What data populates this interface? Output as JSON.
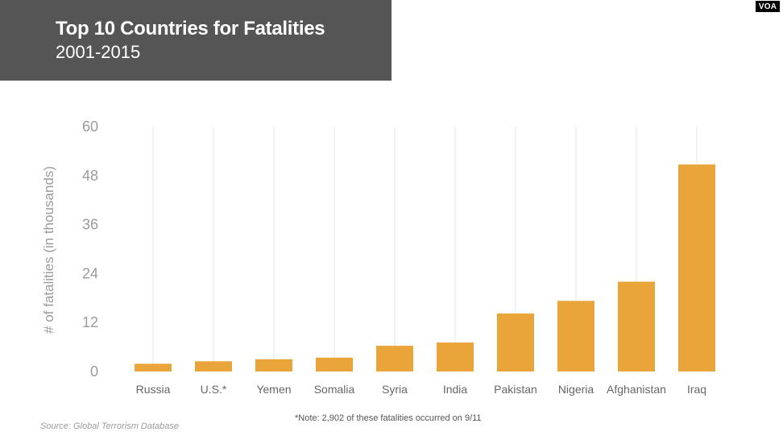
{
  "header": {
    "title": "Top 10 Countries for Fatalities",
    "subtitle": "2001-2015"
  },
  "logo": {
    "text": "VOA"
  },
  "chart_data": {
    "type": "bar",
    "title": "Top 10 Countries for Fatalities",
    "subtitle": "2001-2015",
    "categories": [
      "Russia",
      "U.S.*",
      "Yemen",
      "Somalia",
      "Syria",
      "India",
      "Pakistan",
      "Nigeria",
      "Afghanistan",
      "Iraq"
    ],
    "values": [
      1.9,
      2.5,
      3.0,
      3.4,
      6.3,
      7.1,
      14.2,
      17.3,
      22.0,
      50.7
    ],
    "xlabel": "",
    "ylabel": "# of fatalities (in thousands)",
    "ylim": [
      0,
      60
    ],
    "yticks": [
      0,
      12,
      24,
      36,
      48,
      60
    ],
    "grid": "vertical",
    "bar_color": "#E9A43A",
    "grid_color": "#e6e6e6"
  },
  "footer": {
    "note": "*Note: 2,902 of these fatalities occurred on 9/11",
    "source": "Source: Global Terrorism Database"
  }
}
